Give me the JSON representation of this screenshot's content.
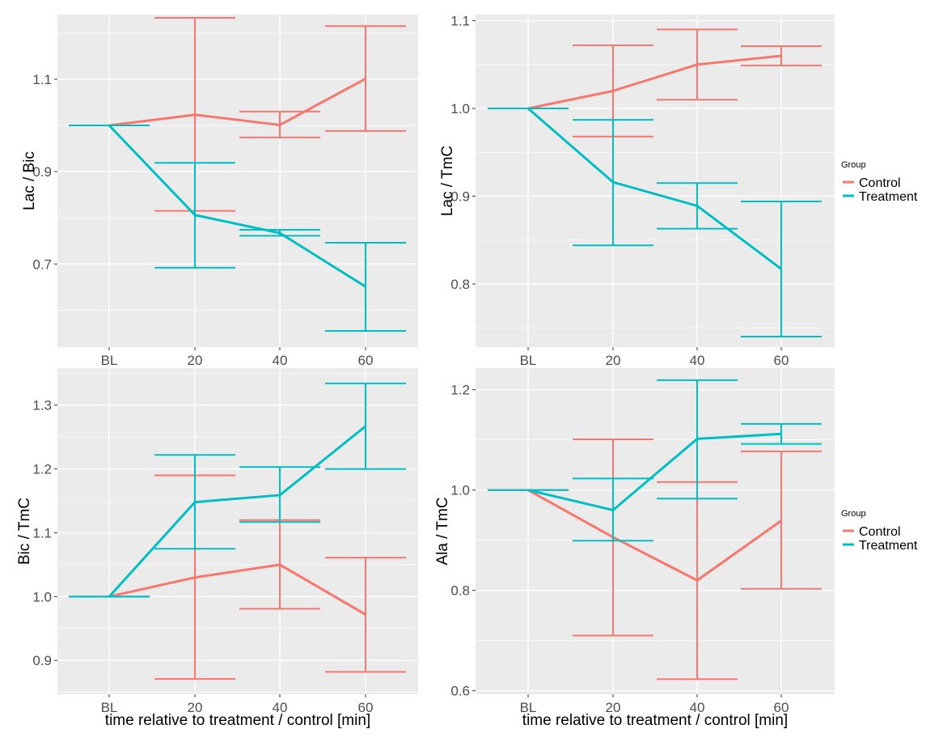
{
  "colors": {
    "control": "#F8766D",
    "treatment": "#00BFC4",
    "panel_bg": "#EBEBEB",
    "grid": "#FFFFFF"
  },
  "chart_data": [
    {
      "type": "line",
      "ylabel": "Lac / Bic",
      "xlabel": "",
      "categories": [
        "BL",
        "20",
        "40",
        "60"
      ],
      "ylim": [
        0.52,
        1.24
      ],
      "yticks": [
        0.7,
        0.9,
        1.1
      ],
      "ytick_labels": [
        "0.7",
        "0.9",
        "1.1"
      ],
      "series": [
        {
          "name": "Control",
          "values": [
            1.0,
            1.023,
            1.001,
            1.101
          ],
          "lower": [
            1.0,
            0.815,
            0.974,
            0.988
          ],
          "upper": [
            1.0,
            1.233,
            1.03,
            1.215
          ]
        },
        {
          "name": "Treatment",
          "values": [
            1.0,
            0.806,
            0.767,
            0.651
          ],
          "lower": [
            1.0,
            0.692,
            0.761,
            0.555
          ],
          "upper": [
            1.0,
            0.919,
            0.774,
            0.746
          ]
        }
      ]
    },
    {
      "type": "line",
      "ylabel": "Lac / TmC",
      "xlabel": "",
      "categories": [
        "BL",
        "20",
        "40",
        "60"
      ],
      "ylim": [
        0.728,
        1.107
      ],
      "yticks": [
        0.8,
        0.9,
        1.0,
        1.1
      ],
      "ytick_labels": [
        "0.8",
        "0.9",
        "1.0",
        "1.1"
      ],
      "legend": {
        "title": "Group",
        "entries": [
          "Control",
          "Treatment"
        ]
      },
      "series": [
        {
          "name": "Control",
          "values": [
            1.0,
            1.02,
            1.05,
            1.06
          ],
          "lower": [
            1.0,
            0.968,
            1.01,
            1.049
          ],
          "upper": [
            1.0,
            1.072,
            1.09,
            1.071
          ]
        },
        {
          "name": "Treatment",
          "values": [
            1.0,
            0.916,
            0.889,
            0.817
          ],
          "lower": [
            1.0,
            0.844,
            0.863,
            0.74
          ],
          "upper": [
            1.0,
            0.987,
            0.915,
            0.894
          ]
        }
      ]
    },
    {
      "type": "line",
      "ylabel": "Bic / TmC",
      "xlabel": "time relative to treatment / control [min]",
      "categories": [
        "BL",
        "20",
        "40",
        "60"
      ],
      "ylim": [
        0.847,
        1.358
      ],
      "yticks": [
        0.9,
        1.0,
        1.1,
        1.2,
        1.3
      ],
      "ytick_labels": [
        "0.9",
        "1.0",
        "1.1",
        "1.2",
        "1.3"
      ],
      "series": [
        {
          "name": "Control",
          "values": [
            1.0,
            1.03,
            1.05,
            0.972
          ],
          "lower": [
            1.0,
            0.871,
            0.981,
            0.882
          ],
          "upper": [
            1.0,
            1.19,
            1.12,
            1.061
          ]
        },
        {
          "name": "Treatment",
          "values": [
            1.0,
            1.148,
            1.159,
            1.267
          ],
          "lower": [
            1.0,
            1.075,
            1.117,
            1.2
          ],
          "upper": [
            1.0,
            1.222,
            1.203,
            1.334
          ]
        }
      ]
    },
    {
      "type": "line",
      "ylabel": "Ala / TmC",
      "xlabel": "time relative to treatment / control [min]",
      "categories": [
        "BL",
        "20",
        "40",
        "60"
      ],
      "ylim": [
        0.593,
        1.243
      ],
      "yticks": [
        0.6,
        0.8,
        1.0,
        1.2
      ],
      "ytick_labels": [
        "0.6",
        "0.8",
        "1.0",
        "1.2"
      ],
      "legend": {
        "title": "Group",
        "entries": [
          "Control",
          "Treatment"
        ]
      },
      "series": [
        {
          "name": "Control",
          "values": [
            1.0,
            0.906,
            0.82,
            0.939
          ],
          "lower": [
            1.0,
            0.71,
            0.623,
            0.803
          ],
          "upper": [
            1.0,
            1.101,
            1.016,
            1.077
          ]
        },
        {
          "name": "Treatment",
          "values": [
            1.0,
            0.96,
            1.102,
            1.112
          ],
          "lower": [
            1.0,
            0.899,
            0.983,
            1.092
          ],
          "upper": [
            1.0,
            1.023,
            1.219,
            1.132
          ]
        }
      ]
    }
  ]
}
